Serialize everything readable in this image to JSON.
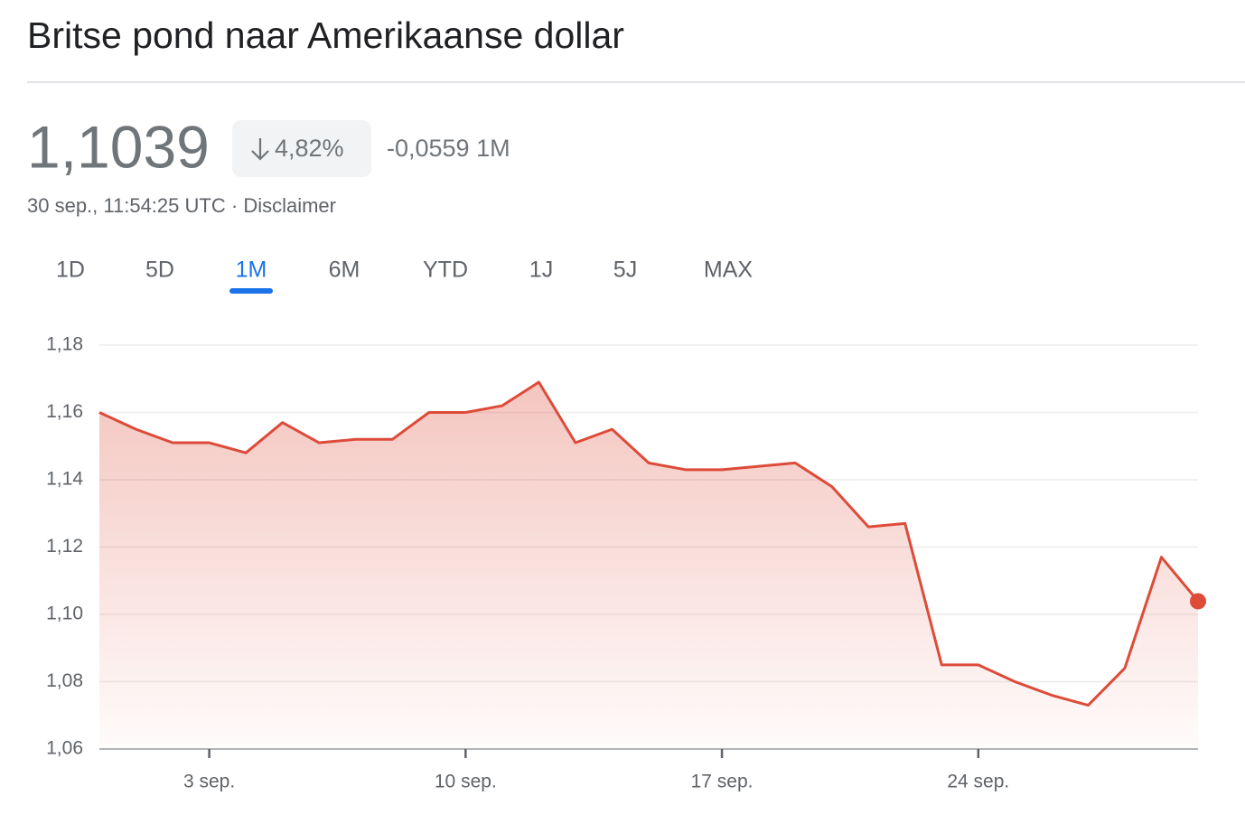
{
  "header": {
    "title": "Britse pond naar Amerikaanse dollar",
    "price": "1,1039",
    "change_percent": "4,82%",
    "change": "-0,0559 1M",
    "timestamp": "30 sep., 11:54:25 UTC",
    "separator": "·",
    "disclaimer": "Disclaimer"
  },
  "tabs": [
    "1D",
    "5D",
    "1M",
    "6M",
    "YTD",
    "1J",
    "5J",
    "MAX"
  ],
  "chart_data": {
    "type": "area",
    "categories": [
      null,
      null,
      null,
      "3 sep.",
      null,
      null,
      null,
      null,
      null,
      null,
      "10 sep.",
      null,
      null,
      null,
      null,
      null,
      null,
      "17 sep.",
      null,
      null,
      null,
      null,
      null,
      null,
      "24 sep.",
      null,
      null,
      null,
      null,
      null,
      null
    ],
    "series": [
      {
        "name": "GBP/USD",
        "color": "#dd4b39",
        "values": [
          1.16,
          1.155,
          1.151,
          1.151,
          1.148,
          1.157,
          1.151,
          1.152,
          1.152,
          1.16,
          1.16,
          1.162,
          1.169,
          1.151,
          1.155,
          1.145,
          1.143,
          1.143,
          1.144,
          1.145,
          1.138,
          1.126,
          1.127,
          1.085,
          1.085,
          1.08,
          1.076,
          1.073,
          1.084,
          1.117,
          1.1039
        ]
      }
    ],
    "ylim": [
      1.06,
      1.18
    ],
    "yticks": [
      {
        "value": 1.06,
        "label": "1,06"
      },
      {
        "value": 1.08,
        "label": "1,08"
      },
      {
        "value": 1.1,
        "label": "1,10"
      },
      {
        "value": 1.12,
        "label": "1,12"
      },
      {
        "value": 1.14,
        "label": "1,14"
      },
      {
        "value": 1.16,
        "label": "1,16"
      },
      {
        "value": 1.18,
        "label": "1,18"
      }
    ],
    "grid": true
  }
}
